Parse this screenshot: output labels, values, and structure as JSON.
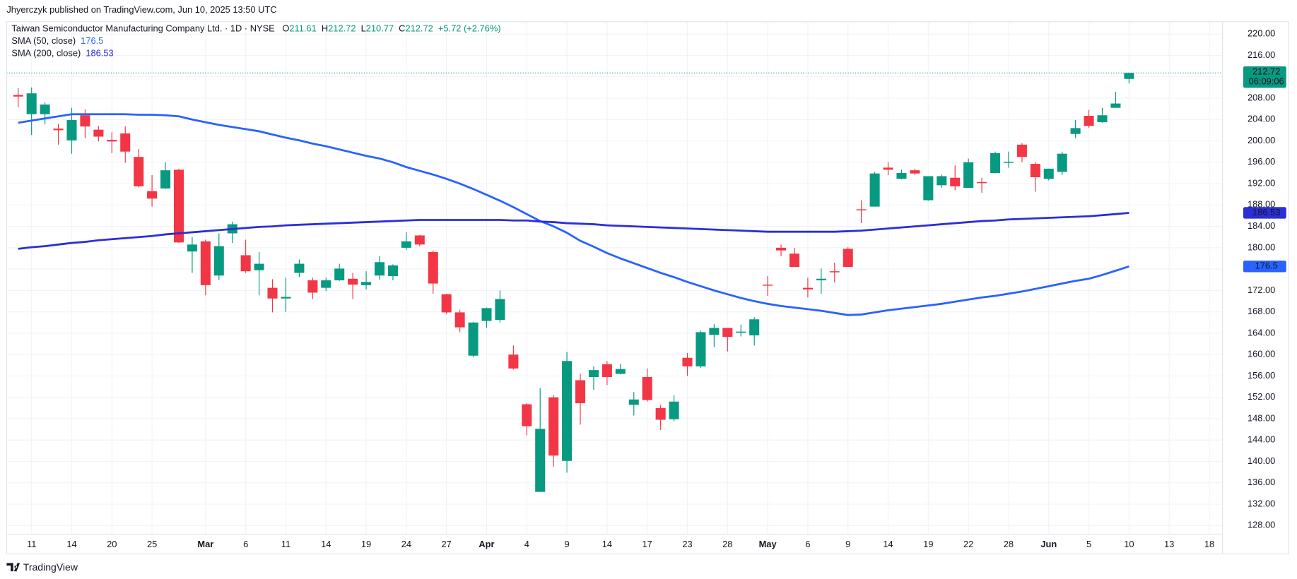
{
  "header": "Jhyerczyk published on TradingView.com, Jun 10, 2025 13:50 UTC",
  "footer": "TradingView",
  "chart_data": {
    "type": "candlestick",
    "title": "Taiwan Semiconductor Manufacturing Company Ltd. · 1D · NYSE",
    "ohlc_labels": [
      "O",
      "H",
      "L",
      "C"
    ],
    "change_label": "+5.72 (+2.76%)",
    "countdown": "06:09:06",
    "up_color": "#089981",
    "down_color": "#f23645",
    "grid": true,
    "categories": [
      null,
      "11",
      null,
      null,
      "14",
      null,
      null,
      "20",
      null,
      null,
      "25",
      null,
      null,
      null,
      "Mar",
      null,
      null,
      "6",
      null,
      null,
      "11",
      null,
      null,
      "14",
      null,
      null,
      "19",
      null,
      null,
      "24",
      null,
      null,
      "27",
      null,
      null,
      "Apr",
      null,
      null,
      "4",
      null,
      null,
      "9",
      null,
      null,
      "14",
      null,
      null,
      "17",
      null,
      null,
      "23",
      null,
      null,
      "28",
      null,
      null,
      "May",
      null,
      null,
      "6",
      null,
      null,
      "9",
      null,
      null,
      "14",
      null,
      null,
      "19",
      null,
      null,
      "22",
      null,
      null,
      "28",
      null,
      null,
      "Jun",
      null,
      null,
      "5",
      null,
      null,
      "10",
      null,
      null,
      "13",
      null,
      null,
      "18"
    ],
    "open": [
      208.6,
      205.0,
      205.0,
      202.3,
      200.1,
      204.8,
      202.1,
      200.2,
      201.4,
      197.0,
      190.6,
      191.1,
      194.6,
      179.3,
      181.2,
      174.8,
      182.7,
      178.6,
      175.8,
      172.5,
      170.5,
      175.3,
      173.9,
      172.5,
      173.9,
      174.2,
      173.0,
      174.8,
      174.7,
      180.0,
      182.3,
      179.2,
      171.3,
      167.9,
      159.8,
      166.3,
      166.5,
      160.0,
      150.7,
      134.3,
      152.0,
      140.1,
      155.2,
      155.8,
      158.2,
      156.4,
      150.6,
      155.8,
      150.0,
      147.9,
      159.4,
      157.8,
      163.7,
      165.0,
      164.1,
      163.6,
      173.1,
      180.0,
      178.9,
      172.5,
      173.9,
      175.6,
      179.8,
      187.2,
      187.7,
      195.0,
      192.9,
      194.5,
      188.9,
      191.7,
      193.1,
      191.2,
      192.3,
      194.0,
      195.9,
      199.3,
      195.7,
      192.9,
      194.2,
      201.3,
      204.7,
      203.5,
      206.2,
      211.61,
      null,
      null,
      null,
      null,
      null,
      null
    ],
    "high": [
      209.9,
      210.0,
      207.2,
      203.2,
      206.2,
      205.9,
      202.8,
      201.6,
      202.7,
      198.5,
      193.6,
      196.0,
      194.8,
      182.0,
      181.5,
      182.7,
      184.9,
      181.5,
      179.2,
      174.1,
      174.4,
      177.8,
      174.4,
      174.4,
      177.0,
      175.3,
      175.6,
      178.4,
      176.9,
      182.9,
      182.4,
      179.5,
      171.4,
      168.4,
      166.1,
      168.8,
      172.0,
      161.7,
      150.9,
      153.7,
      152.4,
      160.5,
      156.4,
      157.8,
      158.8,
      158.3,
      153.0,
      157.4,
      150.6,
      152.4,
      160.3,
      164.5,
      165.7,
      165.0,
      165.6,
      167.0,
      174.7,
      180.6,
      180.0,
      174.4,
      176.1,
      177.2,
      180.1,
      188.9,
      194.2,
      196.0,
      194.6,
      194.8,
      193.4,
      193.7,
      195.4,
      196.7,
      193.1,
      198.0,
      198.0,
      199.6,
      196.0,
      194.8,
      198.0,
      203.9,
      205.8,
      206.2,
      209.2,
      212.72,
      null,
      null,
      null,
      null,
      null,
      null
    ],
    "low": [
      206.3,
      201.1,
      203.1,
      199.3,
      197.6,
      200.5,
      199.9,
      197.7,
      195.9,
      191.3,
      187.7,
      191.0,
      180.9,
      175.3,
      171.1,
      174.0,
      180.9,
      175.3,
      171.1,
      167.9,
      168.0,
      174.5,
      170.4,
      171.9,
      173.8,
      170.4,
      172.2,
      174.0,
      173.9,
      179.6,
      180.3,
      171.4,
      167.6,
      164.2,
      159.5,
      165.0,
      166.0,
      157.2,
      144.9,
      134.3,
      139.0,
      137.9,
      146.9,
      153.4,
      154.3,
      156.3,
      148.6,
      151.2,
      145.9,
      147.5,
      156.0,
      157.5,
      161.4,
      160.6,
      163.4,
      161.7,
      171.0,
      178.4,
      176.4,
      170.7,
      171.4,
      173.5,
      176.4,
      184.6,
      187.7,
      193.6,
      192.8,
      193.6,
      188.8,
      191.2,
      190.8,
      191.2,
      190.3,
      193.9,
      195.0,
      196.0,
      190.5,
      192.6,
      193.6,
      200.5,
      202.4,
      203.4,
      206.2,
      210.77,
      null,
      null,
      null,
      null,
      null,
      null
    ],
    "close": [
      208.3,
      208.9,
      206.8,
      202.0,
      203.9,
      202.7,
      200.8,
      199.9,
      198.0,
      191.5,
      189.2,
      194.5,
      181.0,
      180.6,
      173.0,
      180.3,
      184.4,
      175.6,
      177.0,
      170.5,
      170.8,
      177.0,
      171.6,
      173.9,
      176.1,
      173.1,
      173.6,
      177.3,
      176.7,
      181.2,
      180.6,
      173.3,
      167.9,
      165.1,
      166.0,
      168.7,
      170.4,
      157.4,
      146.6,
      146.1,
      141.1,
      158.8,
      150.9,
      157.1,
      155.8,
      157.3,
      151.6,
      151.5,
      147.8,
      151.2,
      157.8,
      164.2,
      165.0,
      163.3,
      164.3,
      166.6,
      172.9,
      179.5,
      176.4,
      172.2,
      174.2,
      175.4,
      176.4,
      187.0,
      193.9,
      194.6,
      194.0,
      193.9,
      193.4,
      193.4,
      191.5,
      196.0,
      192.1,
      197.7,
      196.1,
      197.0,
      193.2,
      194.8,
      197.6,
      202.4,
      202.8,
      204.8,
      207.0,
      212.72,
      null,
      null,
      null,
      null,
      null,
      null
    ],
    "series": [
      {
        "name": "SMA (50, close)",
        "color": "#2962ff",
        "values": [
          203.4,
          203.8,
          204.2,
          204.6,
          205.0,
          205.0,
          205.0,
          205.0,
          205.0,
          204.9,
          204.9,
          204.8,
          204.6,
          204.0,
          203.5,
          203.0,
          202.6,
          202.2,
          201.8,
          201.2,
          200.6,
          200.1,
          199.5,
          199.0,
          198.4,
          197.8,
          197.2,
          196.7,
          196.0,
          195.1,
          194.4,
          193.7,
          192.9,
          192.0,
          191.0,
          189.9,
          188.8,
          187.6,
          186.3,
          185.0,
          184.0,
          182.8,
          181.3,
          180.2,
          179.0,
          178.0,
          177.1,
          176.2,
          175.3,
          174.5,
          173.6,
          172.8,
          172.0,
          171.3,
          170.6,
          170.0,
          169.5,
          169.1,
          168.8,
          168.5,
          168.2,
          167.8,
          167.4,
          167.5,
          167.9,
          168.3,
          168.6,
          168.9,
          169.2,
          169.5,
          169.9,
          170.3,
          170.7,
          171.0,
          171.4,
          171.8,
          172.3,
          172.8,
          173.3,
          173.8,
          174.2,
          174.9,
          175.7,
          176.5,
          null,
          null,
          null,
          null,
          null,
          null
        ]
      },
      {
        "name": "SMA (200, close)",
        "color": "#2b2fd6",
        "values": [
          179.8,
          180.1,
          180.3,
          180.6,
          180.9,
          181.1,
          181.4,
          181.6,
          181.8,
          182.0,
          182.2,
          182.5,
          182.7,
          182.9,
          183.1,
          183.3,
          183.5,
          183.7,
          183.9,
          184.0,
          184.2,
          184.3,
          184.4,
          184.5,
          184.6,
          184.7,
          184.8,
          184.9,
          185.0,
          185.1,
          185.2,
          185.2,
          185.2,
          185.2,
          185.2,
          185.2,
          185.2,
          185.1,
          185.1,
          184.9,
          184.8,
          184.6,
          184.5,
          184.4,
          184.2,
          184.1,
          184.0,
          183.9,
          183.8,
          183.7,
          183.6,
          183.5,
          183.4,
          183.3,
          183.2,
          183.1,
          183.0,
          183.0,
          183.0,
          183.0,
          183.0,
          183.0,
          183.1,
          183.2,
          183.4,
          183.6,
          183.8,
          184.0,
          184.2,
          184.4,
          184.6,
          184.8,
          185.0,
          185.1,
          185.3,
          185.4,
          185.5,
          185.6,
          185.7,
          185.8,
          185.9,
          186.1,
          186.3,
          186.53,
          null,
          null,
          null,
          null,
          null,
          null
        ]
      }
    ],
    "ylim": [
      126.4,
      222.3
    ],
    "yticks": [
      {
        "value": 128,
        "label": "128.00"
      },
      {
        "value": 132,
        "label": "132.00"
      },
      {
        "value": 136,
        "label": "136.00"
      },
      {
        "value": 140,
        "label": "140.00"
      },
      {
        "value": 144,
        "label": "144.00"
      },
      {
        "value": 148,
        "label": "148.00"
      },
      {
        "value": 152,
        "label": "152.00"
      },
      {
        "value": 156,
        "label": "156.00"
      },
      {
        "value": 160,
        "label": "160.00"
      },
      {
        "value": 164,
        "label": "164.00"
      },
      {
        "value": 168,
        "label": "168.00"
      },
      {
        "value": 172,
        "label": "172.00"
      },
      {
        "value": 176,
        "label": "176.00"
      },
      {
        "value": 180,
        "label": "180.00"
      },
      {
        "value": 184,
        "label": "184.00"
      },
      {
        "value": 188,
        "label": "188.00"
      },
      {
        "value": 192,
        "label": "192.00"
      },
      {
        "value": 196,
        "label": "196.00"
      },
      {
        "value": 200,
        "label": "200.00"
      },
      {
        "value": 204,
        "label": "204.00"
      },
      {
        "value": 208,
        "label": "208.00"
      },
      {
        "value": 212,
        "label": "212.00"
      },
      {
        "value": 216,
        "label": "216.00"
      },
      {
        "value": 220,
        "label": "220.00"
      }
    ]
  }
}
